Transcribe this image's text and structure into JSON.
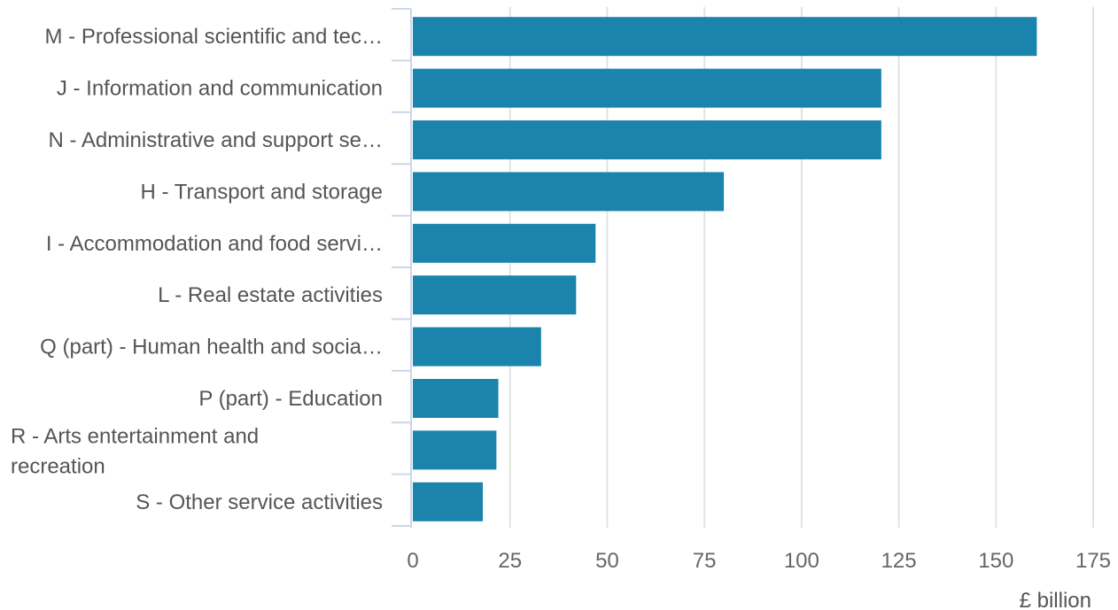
{
  "chart_data": {
    "type": "bar",
    "orientation": "horizontal",
    "title": "",
    "xlabel": "£ billion",
    "ylabel": "",
    "categories": [
      "M - Professional scientific and tec…",
      "J - Information and communication",
      "N - Administrative and support se…",
      "H - Transport and storage",
      "I - Accommodation and food servi…",
      "L - Real estate activities",
      "Q (part) - Human health and socia…",
      "P (part) - Education",
      "R - Arts entertainment and recreation",
      "S - Other service activities"
    ],
    "values": [
      160.5,
      120.5,
      120.5,
      80,
      47,
      42,
      33,
      22,
      21.5,
      18
    ],
    "xlim": [
      0,
      175
    ],
    "xticks": [
      "0",
      "25",
      "50",
      "75",
      "100",
      "125",
      "150",
      "175"
    ],
    "grid": true,
    "legend": "none",
    "bar_color": "#1a84ad"
  }
}
